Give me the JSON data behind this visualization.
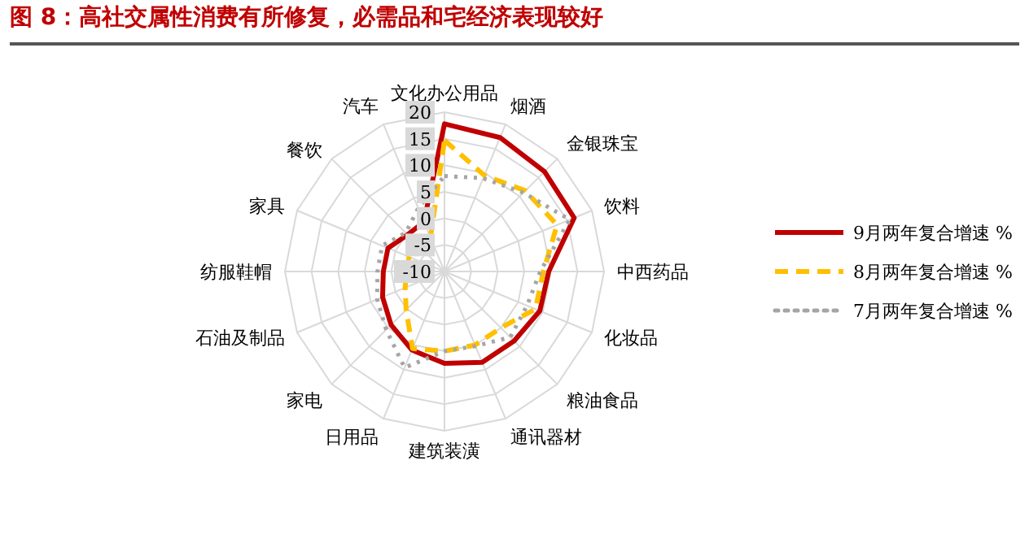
{
  "chart_data": {
    "type": "radar",
    "title": "图 8：高社交属性消费有所修复，必需品和宅经济表现较好",
    "categories": [
      "文化办公用品",
      "烟酒",
      "金银珠宝",
      "饮料",
      "中西药品",
      "化妆品",
      "粮油食品",
      "通讯器材",
      "建筑装潢",
      "日用品",
      "家电",
      "石油及制品",
      "纺服鞋帽",
      "家具",
      "餐饮",
      "汽车"
    ],
    "series": [
      {
        "name": "9月两年复合增速 %",
        "color": "#c00000",
        "line_style": "solid",
        "values": [
          17.8,
          17.3,
          16.6,
          16.4,
          9.6,
          9.4,
          8.5,
          8.5,
          7.3,
          6,
          4.2,
          2.6,
          1.5,
          1.5,
          -0.2,
          0.1
        ]
      },
      {
        "name": "8月两年复合增速 %",
        "color": "#ffc000",
        "line_style": "dashed",
        "values": [
          14.7,
          9.6,
          11.5,
          12.9,
          8.6,
          8.5,
          5,
          5,
          5,
          5.7,
          0.2,
          -2,
          -2.8,
          -2.8,
          -2.4,
          -3.1
        ]
      },
      {
        "name": "7月两年复合增速 %",
        "color": "#a5a5a5",
        "line_style": "dotted",
        "values": [
          8,
          9,
          11,
          15.5,
          8,
          6.8,
          7.5,
          5.2,
          5,
          9.6,
          5.5,
          3.7,
          2.6,
          2.7,
          0.3,
          2.9
        ]
      }
    ],
    "ylim": [
      -10,
      20
    ],
    "yticks": [
      -10,
      -5,
      0,
      5,
      10,
      15,
      20
    ],
    "grid": true,
    "legend": "right",
    "marker": "none"
  }
}
